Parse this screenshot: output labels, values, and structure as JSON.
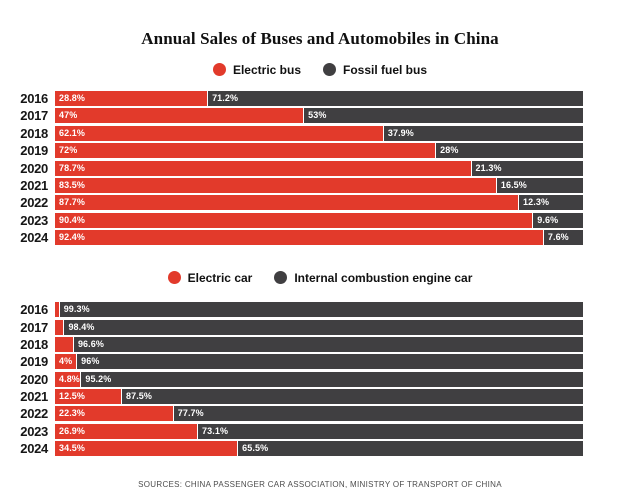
{
  "title": "Annual Sales of Buses and Automobiles in China",
  "footer": "SOURCES: CHINA PASSENGER CAR ASSOCIATION, MINISTRY OF TRANSPORT OF CHINA",
  "colors": {
    "electric": "#e23a2b",
    "fossil": "#403f41",
    "background": "#ffffff",
    "value_text": "#ffffff"
  },
  "chart_data": [
    {
      "type": "bar",
      "orientation": "horizontal",
      "stacked": true,
      "unit": "percent",
      "xlim": [
        0,
        100
      ],
      "grid": false,
      "legend_position": "top",
      "categories": [
        "2016",
        "2017",
        "2018",
        "2019",
        "2020",
        "2021",
        "2022",
        "2023",
        "2024"
      ],
      "legend": [
        {
          "name": "Electric bus",
          "color": "#e23a2b"
        },
        {
          "name": "Fossil fuel bus",
          "color": "#403f41"
        }
      ],
      "series": [
        {
          "name": "Electric bus",
          "color": "#e23a2b",
          "values": [
            28.8,
            47,
            62.1,
            72,
            78.7,
            83.5,
            87.7,
            90.4,
            92.4
          ],
          "labels": [
            "28.8%",
            "47%",
            "62.1%",
            "72%",
            "78.7%",
            "83.5%",
            "87.7%",
            "90.4%",
            "92.4%"
          ]
        },
        {
          "name": "Fossil fuel bus",
          "color": "#403f41",
          "values": [
            71.2,
            53,
            37.9,
            28,
            21.3,
            16.5,
            12.3,
            9.6,
            7.6
          ],
          "labels": [
            "71.2%",
            "53%",
            "37.9%",
            "28%",
            "21.3%",
            "16.5%",
            "12.3%",
            "9.6%",
            "7.6%"
          ]
        }
      ]
    },
    {
      "type": "bar",
      "orientation": "horizontal",
      "stacked": true,
      "unit": "percent",
      "xlim": [
        0,
        100
      ],
      "grid": false,
      "legend_position": "top",
      "categories": [
        "2016",
        "2017",
        "2018",
        "2019",
        "2020",
        "2021",
        "2022",
        "2023",
        "2024"
      ],
      "legend": [
        {
          "name": "Electric car",
          "color": "#e23a2b"
        },
        {
          "name": "Internal combustion engine car",
          "color": "#403f41"
        }
      ],
      "series": [
        {
          "name": "Electric car",
          "color": "#e23a2b",
          "values": [
            0.7,
            1.6,
            3.4,
            4,
            4.8,
            12.5,
            22.3,
            26.9,
            34.5
          ],
          "labels": [
            "",
            "",
            "",
            "4%",
            "4.8%",
            "12.5%",
            "22.3%",
            "26.9%",
            "34.5%"
          ]
        },
        {
          "name": "Internal combustion engine car",
          "color": "#403f41",
          "values": [
            99.3,
            98.4,
            96.6,
            96,
            95.2,
            87.5,
            77.7,
            73.1,
            65.5
          ],
          "labels": [
            "99.3%",
            "98.4%",
            "96.6%",
            "96%",
            "95.2%",
            "87.5%",
            "77.7%",
            "73.1%",
            "65.5%"
          ]
        }
      ]
    }
  ]
}
